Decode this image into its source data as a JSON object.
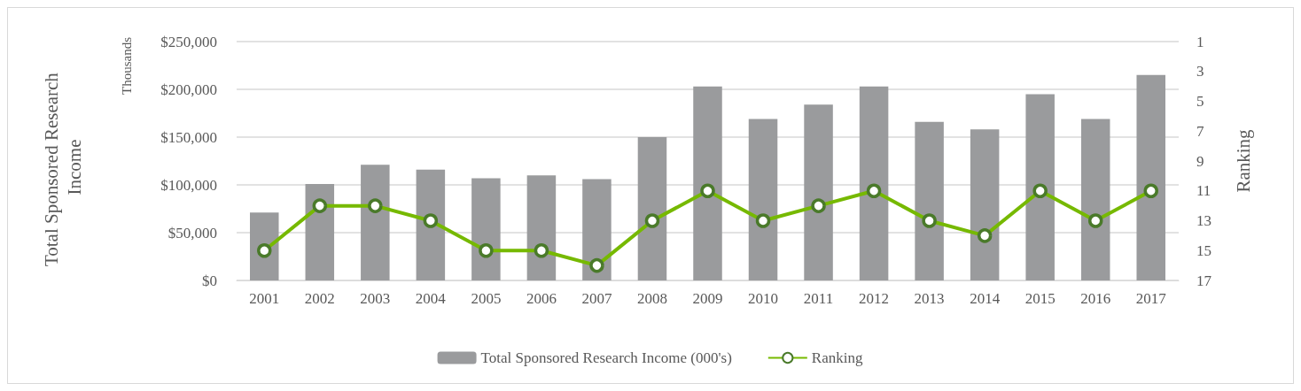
{
  "chart_data": {
    "type": "bar",
    "ylabel": "Total Sponsored Research Income",
    "y2label": "Ranking",
    "annotations": [
      "Thousands"
    ],
    "categories": [
      "2001",
      "2002",
      "2003",
      "2004",
      "2005",
      "2006",
      "2007",
      "2008",
      "2009",
      "2010",
      "2011",
      "2012",
      "2013",
      "2014",
      "2015",
      "2016",
      "2017"
    ],
    "series": [
      {
        "name": "Total Sponsored Research Income (000's)",
        "color": "#9a9b9d",
        "values": [
          71000,
          101000,
          121000,
          116000,
          107000,
          110000,
          106000,
          150000,
          203000,
          169000,
          184000,
          203000,
          166000,
          158000,
          195000,
          169000,
          215000
        ]
      },
      {
        "name": "Ranking",
        "type": "line",
        "axis": "y2",
        "color": "#76b900",
        "marker": "circle",
        "values": [
          15,
          12,
          12,
          13,
          15,
          15,
          16,
          13,
          11,
          13,
          12,
          11,
          13,
          14,
          11,
          13,
          11
        ]
      }
    ],
    "ylim": [
      0,
      250000
    ],
    "yticks": [
      {
        "value": 0,
        "label": "$0"
      },
      {
        "value": 50000,
        "label": "$50,000"
      },
      {
        "value": 100000,
        "label": "$100,000"
      },
      {
        "value": 150000,
        "label": "$150,000"
      },
      {
        "value": 200000,
        "label": "$200,000"
      },
      {
        "value": 250000,
        "label": "$250,000"
      }
    ],
    "y2lim": [
      17,
      1
    ],
    "y2ticks": [
      1,
      3,
      5,
      7,
      9,
      11,
      13,
      15,
      17
    ],
    "grid": "y",
    "legend": "bottom"
  }
}
